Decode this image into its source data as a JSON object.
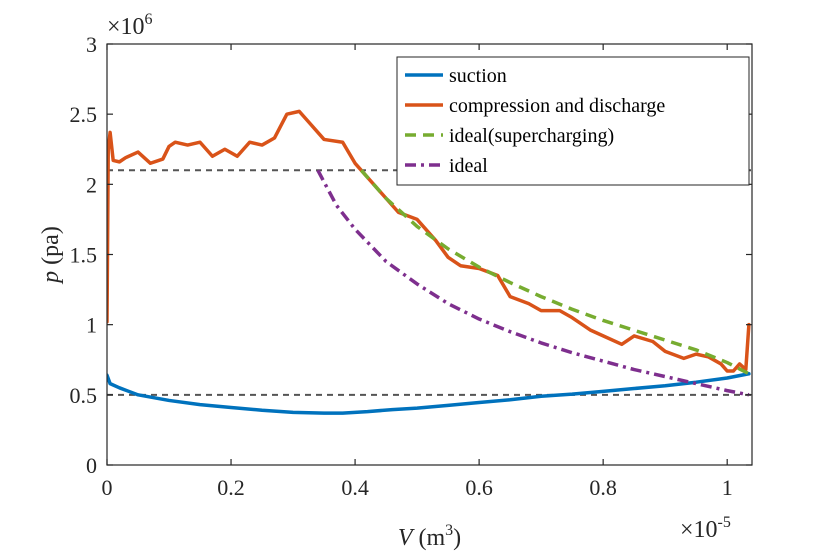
{
  "chart_data": {
    "type": "line",
    "xlabel_var": "V",
    "xlabel_unit": "(m",
    "xlabel_unit_sup": "3",
    "xlabel_close": ")",
    "ylabel_var": "p",
    "ylabel_unit": "(pa)",
    "x_multiplier_base": "×10",
    "x_multiplier_exp": "-5",
    "y_multiplier_base": "×10",
    "y_multiplier_exp": "6",
    "xlim": [
      0,
      1.04
    ],
    "ylim": [
      0,
      3
    ],
    "x_scale_factor": 1e-05,
    "y_scale_factor": 1000000.0,
    "x_ticks": [
      0,
      0.2,
      0.4,
      0.6,
      0.8,
      1
    ],
    "x_tick_labels": [
      "0",
      "0.2",
      "0.4",
      "0.6",
      "0.8",
      "1"
    ],
    "y_ticks": [
      0,
      0.5,
      1,
      1.5,
      2,
      2.5,
      3
    ],
    "y_tick_labels": [
      "0",
      "0.5",
      "1",
      "1.5",
      "2",
      "2.5",
      "3"
    ],
    "grid": false,
    "legend_position": "top-right",
    "reference_lines": [
      {
        "y": 2.1,
        "color": "#555555"
      },
      {
        "y": 0.5,
        "color": "#555555"
      }
    ],
    "series": [
      {
        "name": "suction",
        "color": "#0072BD",
        "dash": "solid",
        "x": [
          0.0,
          0.005,
          0.02,
          0.05,
          0.1,
          0.15,
          0.2,
          0.25,
          0.3,
          0.35,
          0.38,
          0.42,
          0.46,
          0.5,
          0.55,
          0.6,
          0.65,
          0.7,
          0.75,
          0.8,
          0.85,
          0.9,
          0.95,
          1.0,
          1.035
        ],
        "y": [
          0.64,
          0.58,
          0.55,
          0.5,
          0.46,
          0.43,
          0.41,
          0.39,
          0.375,
          0.37,
          0.37,
          0.38,
          0.395,
          0.405,
          0.425,
          0.445,
          0.465,
          0.49,
          0.505,
          0.525,
          0.545,
          0.565,
          0.59,
          0.62,
          0.65
        ]
      },
      {
        "name": "compression and discharge",
        "color": "#D95319",
        "dash": "solid",
        "x": [
          0.0,
          0.002,
          0.005,
          0.01,
          0.02,
          0.03,
          0.05,
          0.07,
          0.09,
          0.1,
          0.11,
          0.13,
          0.15,
          0.17,
          0.19,
          0.21,
          0.23,
          0.25,
          0.27,
          0.29,
          0.31,
          0.33,
          0.35,
          0.38,
          0.4,
          0.42,
          0.45,
          0.47,
          0.5,
          0.53,
          0.55,
          0.57,
          0.6,
          0.63,
          0.65,
          0.68,
          0.7,
          0.73,
          0.75,
          0.78,
          0.8,
          0.83,
          0.85,
          0.88,
          0.9,
          0.93,
          0.95,
          0.97,
          0.99,
          1.0,
          1.01,
          1.02,
          1.03,
          1.035
        ],
        "y": [
          1.02,
          2.25,
          2.37,
          2.17,
          2.16,
          2.19,
          2.23,
          2.15,
          2.18,
          2.27,
          2.3,
          2.28,
          2.3,
          2.2,
          2.25,
          2.2,
          2.3,
          2.28,
          2.33,
          2.5,
          2.52,
          2.42,
          2.32,
          2.3,
          2.15,
          2.05,
          1.9,
          1.8,
          1.75,
          1.6,
          1.48,
          1.42,
          1.4,
          1.35,
          1.2,
          1.15,
          1.1,
          1.1,
          1.05,
          0.96,
          0.92,
          0.86,
          0.92,
          0.88,
          0.81,
          0.76,
          0.79,
          0.77,
          0.72,
          0.67,
          0.67,
          0.72,
          0.68,
          1.0
        ]
      },
      {
        "name": "ideal(supercharging)",
        "color": "#77AC30",
        "dash": "dashed",
        "x": [
          0.41,
          0.45,
          0.5,
          0.55,
          0.6,
          0.65,
          0.7,
          0.75,
          0.8,
          0.85,
          0.9,
          0.95,
          1.0,
          1.035
        ],
        "y": [
          2.1,
          1.9,
          1.7,
          1.54,
          1.41,
          1.3,
          1.2,
          1.11,
          1.03,
          0.96,
          0.89,
          0.82,
          0.73,
          0.65
        ]
      },
      {
        "name": "ideal",
        "color": "#7E2F8E",
        "dash": "dashdot",
        "x": [
          0.34,
          0.37,
          0.4,
          0.45,
          0.5,
          0.55,
          0.6,
          0.65,
          0.7,
          0.75,
          0.8,
          0.85,
          0.9,
          0.95,
          1.0,
          1.035
        ],
        "y": [
          2.1,
          1.85,
          1.68,
          1.45,
          1.29,
          1.15,
          1.04,
          0.95,
          0.87,
          0.8,
          0.74,
          0.68,
          0.63,
          0.58,
          0.53,
          0.5
        ]
      }
    ]
  }
}
